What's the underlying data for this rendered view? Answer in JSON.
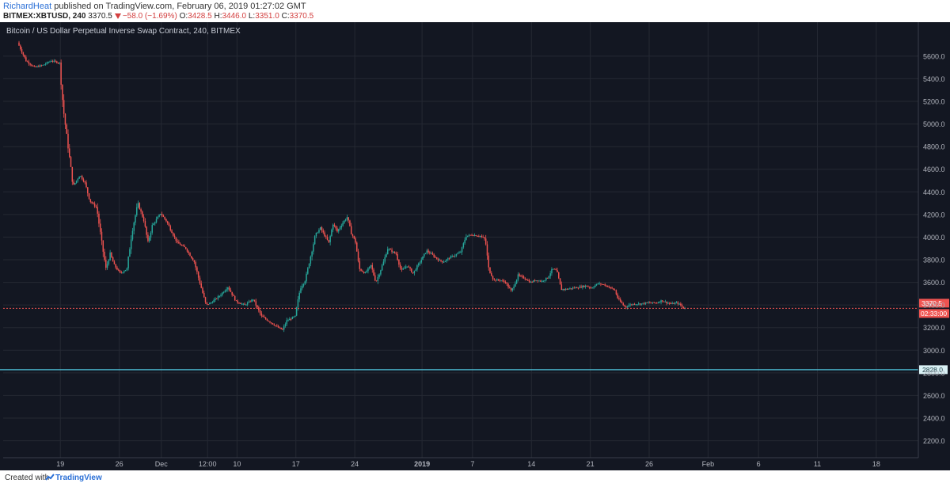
{
  "header": {
    "author": "RichardHeat",
    "published": "published on TradingView.com, February 06, 2019 01:27:02 GMT",
    "symbol": "BITMEX:XBTUSD, 240",
    "last": "3370.5",
    "change": "−58.0 (−1.69%)",
    "ohlc": {
      "o_label": "O:",
      "o": "3428.5",
      "h_label": "H:",
      "h": "3446.0",
      "l_label": "L:",
      "l": "3351.0",
      "c_label": "C:",
      "c": "3370.5"
    }
  },
  "chart_title": "Bitcoin / US Dollar Perpetual Inverse Swap Contract, 240, BITMEX",
  "footer": {
    "created": "Created with",
    "brand": "TradingView"
  },
  "colors": {
    "background": "#131722",
    "up": "#26a69a",
    "down": "#ef5350",
    "price_line": "#ef5350",
    "level_line": "#4fc3d9",
    "grid": "#242833"
  },
  "chart_data": {
    "type": "candlestick",
    "title": "Bitcoin / US Dollar Perpetual Inverse Swap Contract, 240, BITMEX",
    "ylim": [
      2050,
      5900
    ],
    "y_ticks": [
      2200,
      2400,
      2600,
      2800,
      3000,
      3200,
      3400,
      3600,
      3800,
      4000,
      4200,
      4400,
      4600,
      4800,
      5000,
      5200,
      5400,
      5600
    ],
    "y_tick_labels": [
      "2200.0",
      "2400.0",
      "2600.0",
      "2800.0",
      "3000.0",
      "3200.0",
      "3400.0",
      "3600.0",
      "3800.0",
      "4000.0",
      "4200.0",
      "4400.0",
      "4600.0",
      "4800.0",
      "5000.0",
      "5200.0",
      "5400.0",
      "5600.0"
    ],
    "x_ticks": [
      {
        "day": 4,
        "label": "19"
      },
      {
        "day": 11,
        "label": "26"
      },
      {
        "day": 16,
        "label": "Dec"
      },
      {
        "day": 21.5,
        "label": "12:00"
      },
      {
        "day": 25,
        "label": "10"
      },
      {
        "day": 32,
        "label": "17"
      },
      {
        "day": 39,
        "label": "24"
      },
      {
        "day": 47,
        "label": "2019",
        "bold": true
      },
      {
        "day": 53,
        "label": "7"
      },
      {
        "day": 60,
        "label": "14"
      },
      {
        "day": 67,
        "label": "21"
      },
      {
        "day": 74,
        "label": "26"
      },
      {
        "day": 81,
        "label": "Feb"
      },
      {
        "day": 87,
        "label": "6"
      },
      {
        "day": 94,
        "label": "11"
      },
      {
        "day": 101,
        "label": "18"
      }
    ],
    "xlim_days": [
      -2.8,
      106
    ],
    "last_price": 3370.5,
    "last_price_label": "3370.5",
    "countdown_label": "02:33:00",
    "horizontal_line": 2828.0,
    "horizontal_line_label": "2828.0",
    "path": [
      [
        -1,
        5720
      ],
      [
        0,
        5560
      ],
      [
        1,
        5500
      ],
      [
        2,
        5520
      ],
      [
        3,
        5560
      ],
      [
        4,
        5540
      ],
      [
        4.4,
        5150
      ],
      [
        5,
        4800
      ],
      [
        5.6,
        4450
      ],
      [
        6.4,
        4550
      ],
      [
        7,
        4480
      ],
      [
        7.6,
        4320
      ],
      [
        8.4,
        4260
      ],
      [
        9,
        3950
      ],
      [
        9.5,
        3720
      ],
      [
        10,
        3850
      ],
      [
        10.5,
        3750
      ],
      [
        11.2,
        3680
      ],
      [
        12,
        3720
      ],
      [
        12.6,
        4050
      ],
      [
        13.3,
        4300
      ],
      [
        14,
        4150
      ],
      [
        14.5,
        3950
      ],
      [
        15,
        4100
      ],
      [
        16,
        4210
      ],
      [
        16.7,
        4140
      ],
      [
        17.5,
        4020
      ],
      [
        18,
        3950
      ],
      [
        19,
        3900
      ],
      [
        20,
        3780
      ],
      [
        20.8,
        3560
      ],
      [
        21.4,
        3400
      ],
      [
        22,
        3420
      ],
      [
        23,
        3480
      ],
      [
        24,
        3560
      ],
      [
        25,
        3430
      ],
      [
        26,
        3400
      ],
      [
        27,
        3450
      ],
      [
        28,
        3300
      ],
      [
        29,
        3250
      ],
      [
        30,
        3200
      ],
      [
        30.5,
        3180
      ],
      [
        31,
        3260
      ],
      [
        32,
        3300
      ],
      [
        32.6,
        3550
      ],
      [
        33.2,
        3620
      ],
      [
        33.8,
        3820
      ],
      [
        34.4,
        4020
      ],
      [
        35,
        4080
      ],
      [
        36,
        3950
      ],
      [
        36.5,
        4120
      ],
      [
        37,
        4050
      ],
      [
        37.6,
        4120
      ],
      [
        38.2,
        4180
      ],
      [
        38.6,
        4050
      ],
      [
        39.2,
        3950
      ],
      [
        39.6,
        3720
      ],
      [
        40.3,
        3680
      ],
      [
        41,
        3750
      ],
      [
        41.6,
        3600
      ],
      [
        42.5,
        3780
      ],
      [
        43,
        3900
      ],
      [
        44,
        3850
      ],
      [
        44.6,
        3700
      ],
      [
        45.3,
        3750
      ],
      [
        46,
        3680
      ],
      [
        47,
        3800
      ],
      [
        47.6,
        3880
      ],
      [
        48.2,
        3850
      ],
      [
        49,
        3800
      ],
      [
        49.6,
        3780
      ],
      [
        50.4,
        3820
      ],
      [
        51,
        3840
      ],
      [
        51.7,
        3870
      ],
      [
        52.3,
        4010
      ],
      [
        53,
        4020
      ],
      [
        54,
        4010
      ],
      [
        54.6,
        3980
      ],
      [
        55,
        3720
      ],
      [
        55.6,
        3620
      ],
      [
        56.4,
        3620
      ],
      [
        57,
        3600
      ],
      [
        57.7,
        3520
      ],
      [
        58.5,
        3660
      ],
      [
        59.2,
        3640
      ],
      [
        60,
        3600
      ],
      [
        60.6,
        3620
      ],
      [
        61.3,
        3610
      ],
      [
        62,
        3640
      ],
      [
        62.6,
        3720
      ],
      [
        63.1,
        3700
      ],
      [
        63.6,
        3540
      ],
      [
        64.3,
        3540
      ],
      [
        65,
        3550
      ],
      [
        66,
        3560
      ],
      [
        66.6,
        3570
      ],
      [
        67.2,
        3550
      ],
      [
        68,
        3590
      ],
      [
        68.7,
        3580
      ],
      [
        69.3,
        3560
      ],
      [
        70,
        3530
      ],
      [
        70.4,
        3450
      ],
      [
        71,
        3400
      ],
      [
        71.3,
        3380
      ],
      [
        71.7,
        3400
      ],
      [
        72.3,
        3410
      ],
      [
        73,
        3410
      ],
      [
        74,
        3420
      ],
      [
        75,
        3420
      ],
      [
        75.6,
        3440
      ],
      [
        76.2,
        3420
      ],
      [
        76.8,
        3410
      ],
      [
        77.4,
        3420
      ],
      [
        77.8,
        3400
      ],
      [
        78.2,
        3370.5
      ]
    ],
    "candles_per_day": 6
  }
}
